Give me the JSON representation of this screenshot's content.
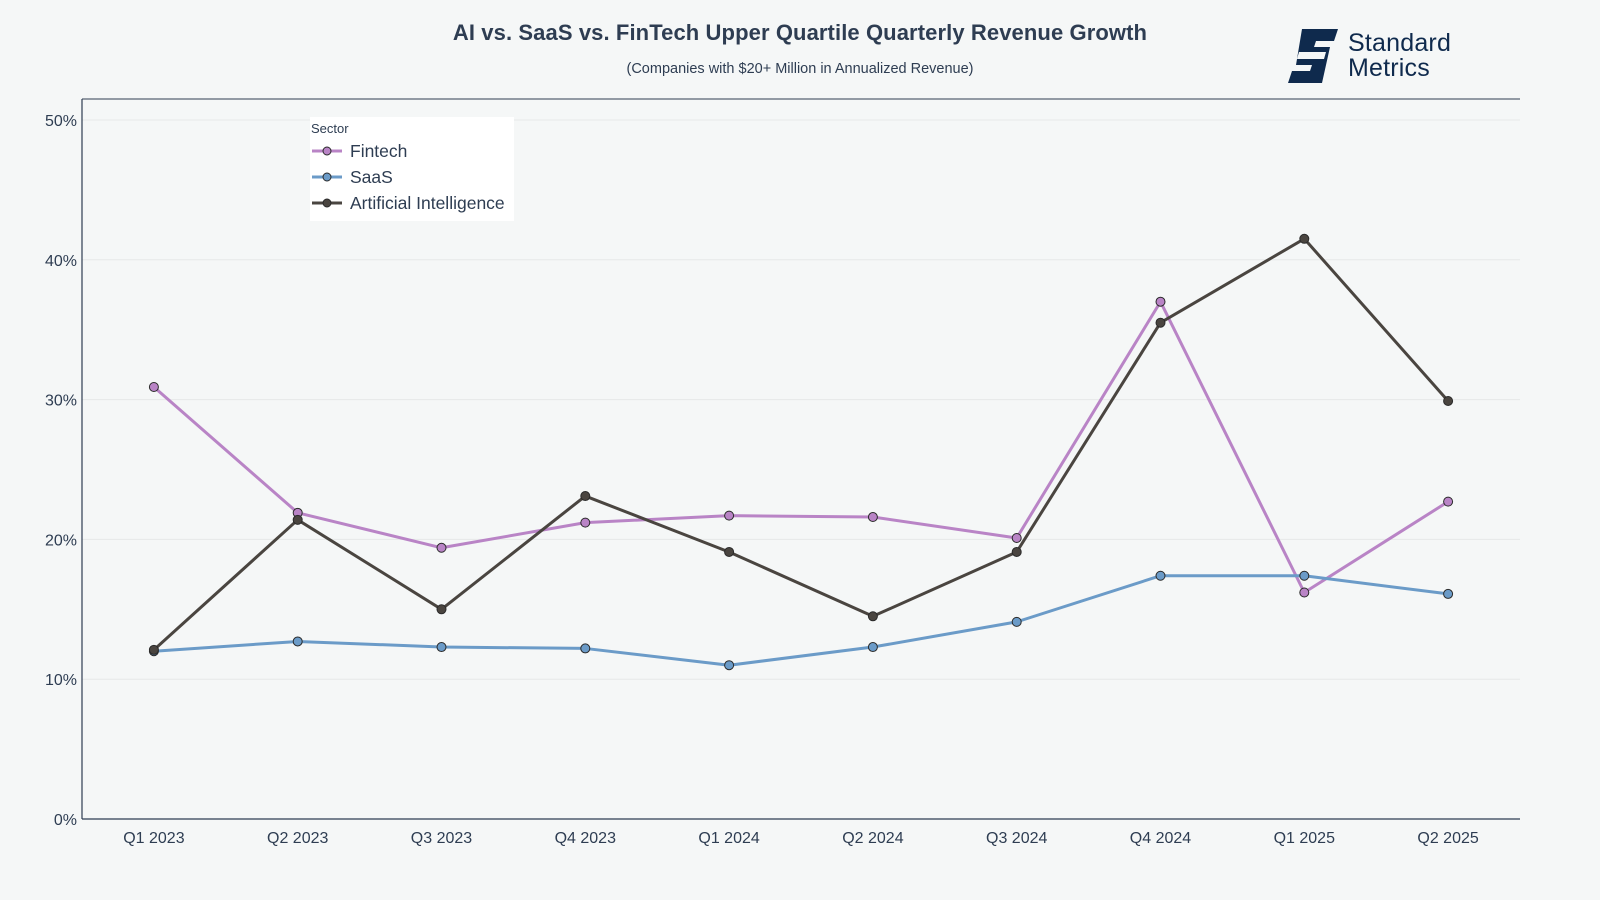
{
  "header": {
    "title": "AI vs. SaaS vs. FinTech Upper Quartile Quarterly Revenue Growth",
    "subtitle": "(Companies with $20+ Million in Annualized Revenue)"
  },
  "logo": {
    "line1": "Standard",
    "line2": "Metrics",
    "icon": "standard-metrics-logo-icon",
    "color": "#0f2a4d"
  },
  "legend": {
    "title": "Sector",
    "items": [
      {
        "label": "Fintech",
        "color": "#b984c6"
      },
      {
        "label": "SaaS",
        "color": "#6b9bc8"
      },
      {
        "label": "Artificial Intelligence",
        "color": "#4a4540"
      }
    ]
  },
  "chart_data": {
    "type": "line",
    "title": "AI vs. SaaS vs. FinTech Upper Quartile Quarterly Revenue Growth",
    "subtitle": "(Companies with $20+ Million in Annualized Revenue)",
    "xlabel": "",
    "ylabel": "",
    "categories": [
      "Q1 2023",
      "Q2 2023",
      "Q3 2023",
      "Q4 2023",
      "Q1 2024",
      "Q2 2024",
      "Q3 2024",
      "Q4 2024",
      "Q1 2025",
      "Q2 2025"
    ],
    "y_ticks": [
      0,
      10,
      20,
      30,
      40,
      50
    ],
    "y_tick_labels": [
      "0%",
      "10%",
      "20%",
      "30%",
      "40%",
      "50%"
    ],
    "ylim": [
      0,
      51.5
    ],
    "grid": true,
    "legend_title": "Sector",
    "legend_position": "top-left",
    "series": [
      {
        "name": "Fintech",
        "color": "#b984c6",
        "values": [
          30.9,
          21.9,
          19.4,
          21.2,
          21.7,
          21.6,
          20.1,
          37.0,
          16.2,
          22.7
        ]
      },
      {
        "name": "SaaS",
        "color": "#6b9bc8",
        "values": [
          12.0,
          12.7,
          12.3,
          12.2,
          11.0,
          12.3,
          14.1,
          17.4,
          17.4,
          16.1
        ]
      },
      {
        "name": "Artificial Intelligence",
        "color": "#4a4540",
        "values": [
          12.1,
          21.4,
          15.0,
          23.1,
          19.1,
          14.5,
          19.1,
          35.5,
          41.5,
          29.9
        ]
      }
    ]
  }
}
